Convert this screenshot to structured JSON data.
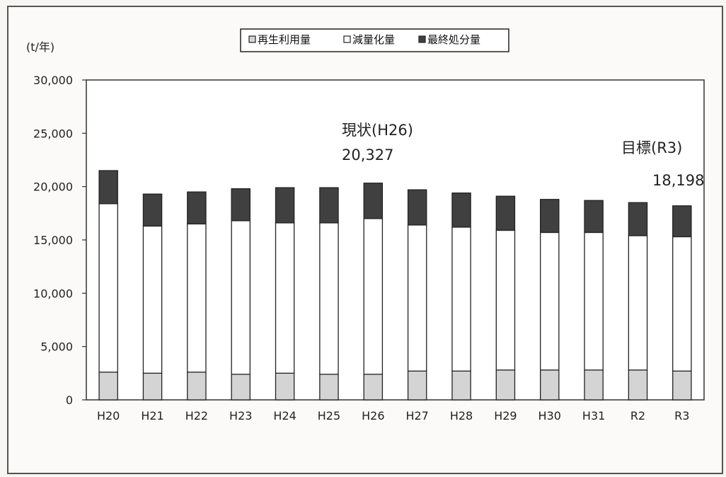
{
  "chart_data": {
    "type": "bar",
    "stacked": true,
    "unit_label": "(t/年)",
    "categories": [
      "H20",
      "H21",
      "H22",
      "H23",
      "H24",
      "H25",
      "H26",
      "H27",
      "H28",
      "H29",
      "H30",
      "H31",
      "R2",
      "R3"
    ],
    "series": [
      {
        "name": "再生利用量",
        "color": "#d4d4d4",
        "values": [
          2600,
          2500,
          2600,
          2400,
          2500,
          2400,
          2400,
          2700,
          2700,
          2800,
          2800,
          2800,
          2800,
          2700
        ]
      },
      {
        "name": "減量化量",
        "color": "#ffffff",
        "values": [
          15800,
          13800,
          13900,
          14400,
          14100,
          14200,
          14600,
          13700,
          13500,
          13100,
          12900,
          12900,
          12600,
          12600
        ]
      },
      {
        "name": "最終処分量",
        "color": "#404040",
        "values": [
          3100,
          3000,
          3000,
          3000,
          3300,
          3300,
          3327,
          3300,
          3200,
          3200,
          3100,
          3000,
          3100,
          2898
        ]
      }
    ],
    "ylim": [
      0,
      30000
    ],
    "yticks": [
      "0",
      "5,000",
      "10,000",
      "15,000",
      "20,000",
      "25,000",
      "30,000"
    ],
    "legend_position": "top-center",
    "grid": false,
    "annotations": {
      "current_label": "現状(H26)",
      "current_value": "20,327",
      "target_label": "目標(R3)",
      "target_value": "18,198"
    }
  }
}
